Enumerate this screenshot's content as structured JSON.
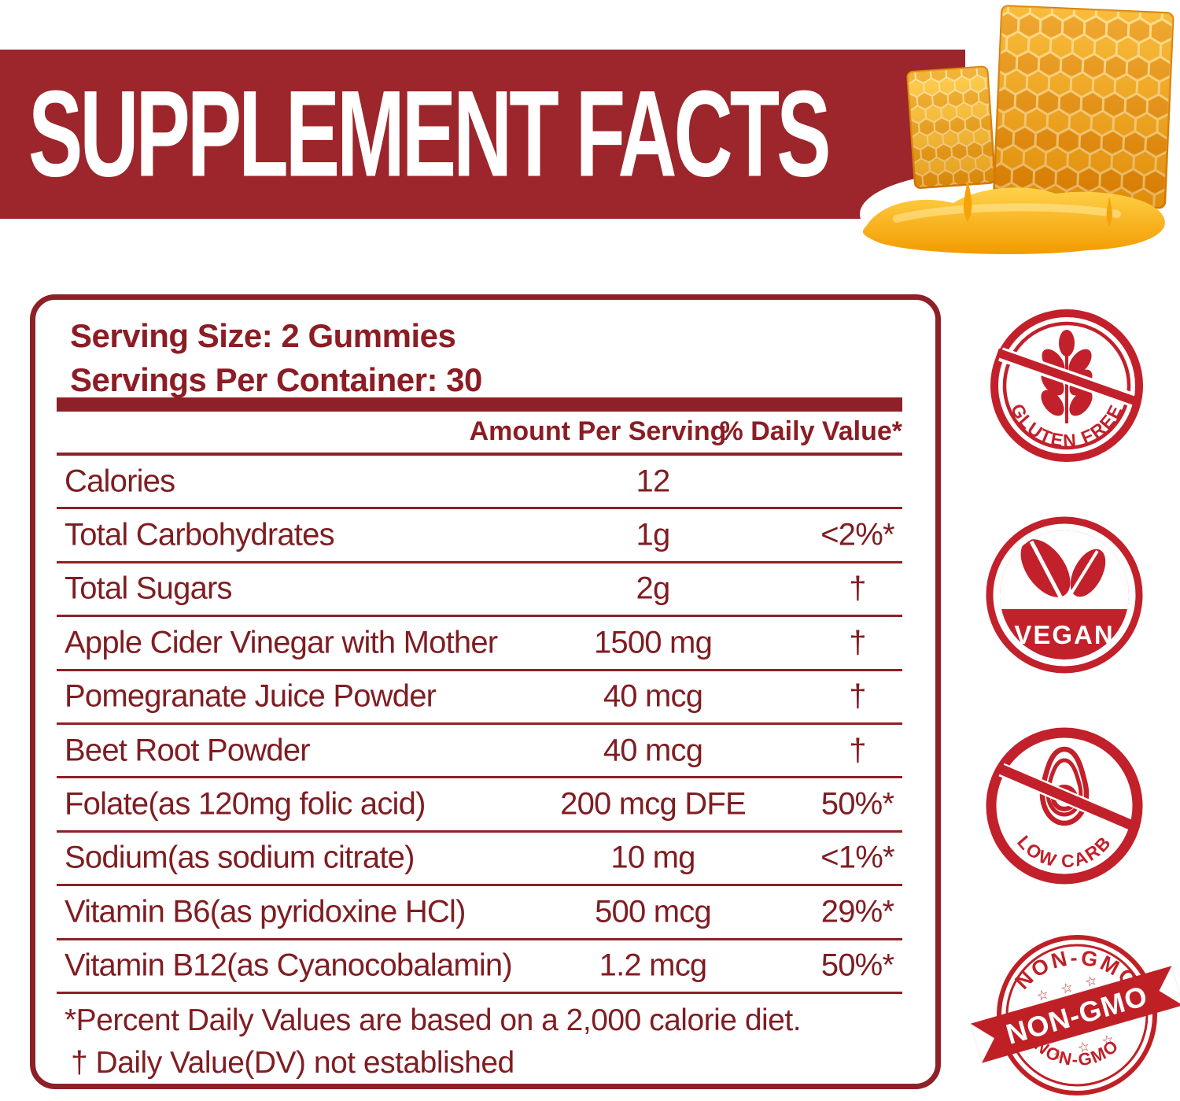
{
  "header": {
    "title": "SUPPLEMENT FACTS"
  },
  "panel": {
    "serving_size_line": "Serving Size: 2 Gummies",
    "servings_line": "Servings Per Container: 30",
    "col_amount": "Amount Per Serving",
    "col_dv": "% Daily Value*",
    "rows": [
      {
        "label": "Calories",
        "amount": "12",
        "dv": ""
      },
      {
        "label": "Total Carbohydrates",
        "amount": "1g",
        "dv": "<2%*"
      },
      {
        "label": "Total Sugars",
        "amount": "2g",
        "dv": "†"
      },
      {
        "label": "Apple Cider Vinegar with Mother",
        "amount": "1500 mg",
        "dv": "†"
      },
      {
        "label": "Pomegranate Juice Powder",
        "amount": "40 mcg",
        "dv": "†"
      },
      {
        "label": "Beet Root Powder",
        "amount": "40 mcg",
        "dv": "†"
      },
      {
        "label": "Folate(as 120mg folic acid)",
        "amount": "200 mcg DFE",
        "dv": "50%*"
      },
      {
        "label": "Sodium(as sodium citrate)",
        "amount": "10 mg",
        "dv": "<1%*"
      },
      {
        "label": "Vitamin B6(as pyridoxine HCl)",
        "amount": "500 mcg",
        "dv": "29%*"
      },
      {
        "label": "Vitamin B12(as Cyanocobalamin)",
        "amount": "1.2 mcg",
        "dv": "50%*"
      }
    ],
    "footnote_line1": "*Percent Daily Values are based on a 2,000 calorie diet.",
    "footnote_line2": "† Daily Value(DV) not established"
  },
  "badges": {
    "gluten_free": {
      "label": "GLUTEN FREE"
    },
    "vegan": {
      "label": "VEGAN"
    },
    "low_carb": {
      "label": "LOW CARB"
    },
    "non_gmo": {
      "top": "NON-GMO",
      "ribbon": "NON-GMO",
      "bottom": "NON-GMO",
      "stars_top": "☆ ☆ ☆",
      "stars_bottom": "☆ ☆ ☆"
    }
  },
  "colors": {
    "banner_red": "#9c262b",
    "text_maroon": "#7f1d22",
    "line_maroon": "#8d2127",
    "badge_red": "#c2202a",
    "honey_orange": "#f5a106",
    "honey_light": "#ffd95e"
  }
}
